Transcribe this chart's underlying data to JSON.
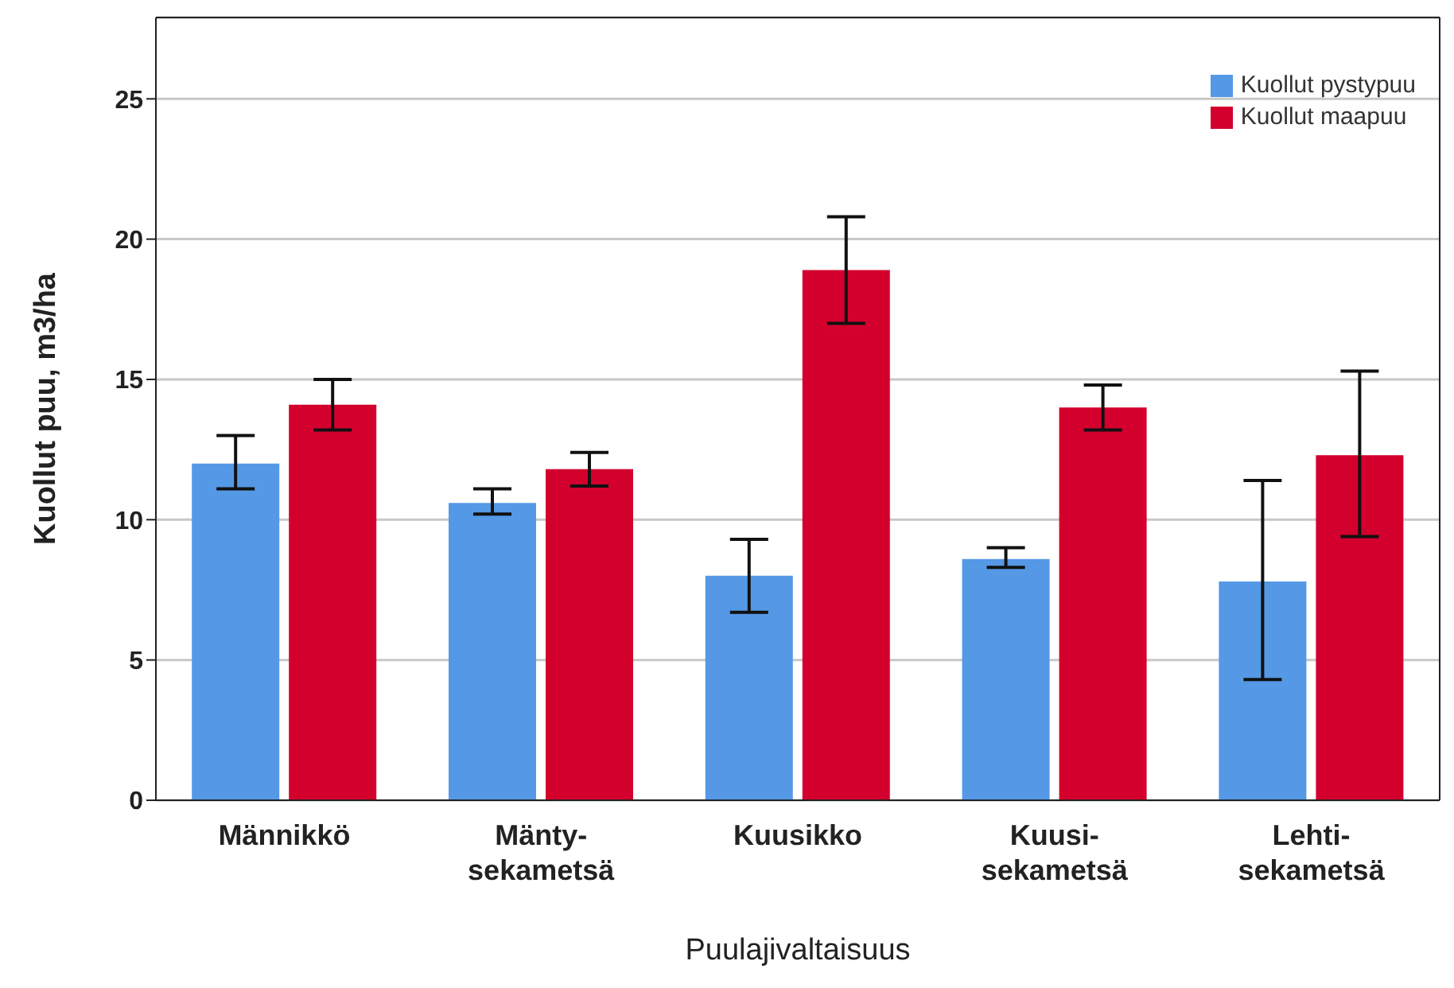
{
  "chart_data": {
    "type": "bar",
    "xlabel": "Puulajivaltaisuus",
    "ylabel": "Kuollut puu, m3/ha",
    "categories": [
      "Männikkö",
      "Mänty-\nsekametsä",
      "Kuusikko",
      "Kuusi-\nsekametsä",
      "Lehti-\nsekametsä"
    ],
    "series": [
      {
        "name": "Kuollut pystypuu",
        "color": "#5599e6",
        "values": [
          12.0,
          10.6,
          8.0,
          8.6,
          7.8
        ],
        "errors": [
          [
            11.1,
            13.0
          ],
          [
            10.2,
            11.1
          ],
          [
            6.7,
            9.3
          ],
          [
            8.3,
            9.0
          ],
          [
            4.3,
            11.4
          ]
        ]
      },
      {
        "name": "Kuollut maapuu",
        "color": "#d3002e",
        "values": [
          14.1,
          11.8,
          18.9,
          14.0,
          12.3
        ],
        "errors": [
          [
            13.2,
            15.0
          ],
          [
            11.2,
            12.4
          ],
          [
            17.0,
            20.8
          ],
          [
            13.2,
            14.8
          ],
          [
            9.4,
            15.3
          ]
        ]
      }
    ],
    "ylim": [
      0,
      27.9
    ],
    "yticks": [
      0,
      5,
      10,
      15,
      20,
      25
    ],
    "grid": "y",
    "legend": "top right"
  }
}
